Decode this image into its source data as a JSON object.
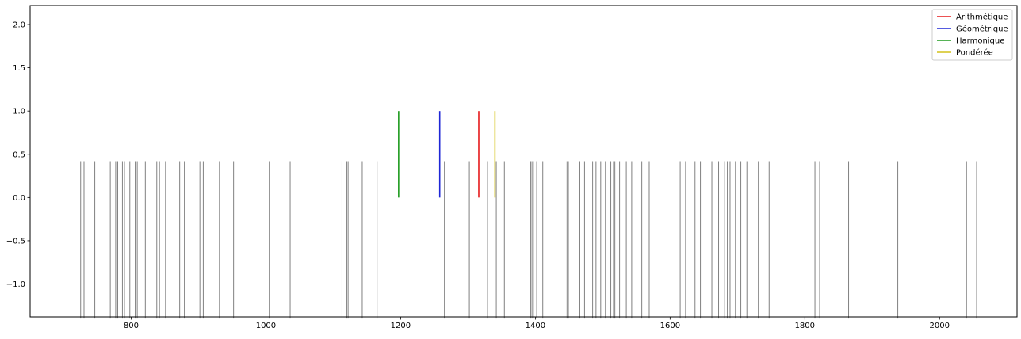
{
  "chart_data": {
    "type": "line",
    "title": "",
    "xlabel": "",
    "ylabel": "",
    "xlim": [
      650,
      2115
    ],
    "ylim": [
      -1.38,
      2.22
    ],
    "x_ticks": [
      800,
      1000,
      1200,
      1400,
      1600,
      1800,
      2000
    ],
    "y_ticks": [
      -1.0,
      -0.5,
      0.0,
      0.5,
      1.0,
      1.5,
      2.0
    ],
    "x_tick_labels": [
      "800",
      "1000",
      "1200",
      "1400",
      "1600",
      "1800",
      "2000"
    ],
    "y_tick_labels": [
      "−1.0",
      "−0.5",
      "0.0",
      "0.5",
      "1.0",
      "1.5",
      "2.0"
    ],
    "grid": false,
    "legend_position": "top-right",
    "observations": {
      "color": "#808080",
      "y_range": [
        -1.4,
        0.42
      ],
      "x": [
        725,
        730,
        746,
        769,
        777,
        780,
        787,
        790,
        798,
        806,
        809,
        821,
        838,
        842,
        851,
        872,
        879,
        902,
        907,
        931,
        952,
        1005,
        1036,
        1113,
        1120,
        1122,
        1143,
        1165,
        1265,
        1302,
        1329,
        1342,
        1354,
        1393,
        1395,
        1397,
        1402,
        1411,
        1447,
        1449,
        1466,
        1473,
        1485,
        1490,
        1497,
        1504,
        1512,
        1516,
        1518,
        1525,
        1535,
        1543,
        1558,
        1569,
        1615,
        1623,
        1637,
        1645,
        1662,
        1672,
        1681,
        1685,
        1689,
        1697,
        1705,
        1714,
        1731,
        1747,
        1815,
        1822,
        1865,
        1938,
        2040,
        2055
      ]
    },
    "series": [
      {
        "name": "Arithmétique",
        "color": "#e6191b",
        "x": 1316,
        "y": [
          0,
          1
        ]
      },
      {
        "name": "Géométrique",
        "color": "#1f27d6",
        "x": 1258,
        "y": [
          0,
          1
        ]
      },
      {
        "name": "Harmonique",
        "color": "#1e9a1e",
        "x": 1197,
        "y": [
          0,
          1
        ]
      },
      {
        "name": "Pondérée",
        "color": "#d4c21a",
        "x": 1340,
        "y": [
          0,
          1
        ]
      }
    ]
  }
}
